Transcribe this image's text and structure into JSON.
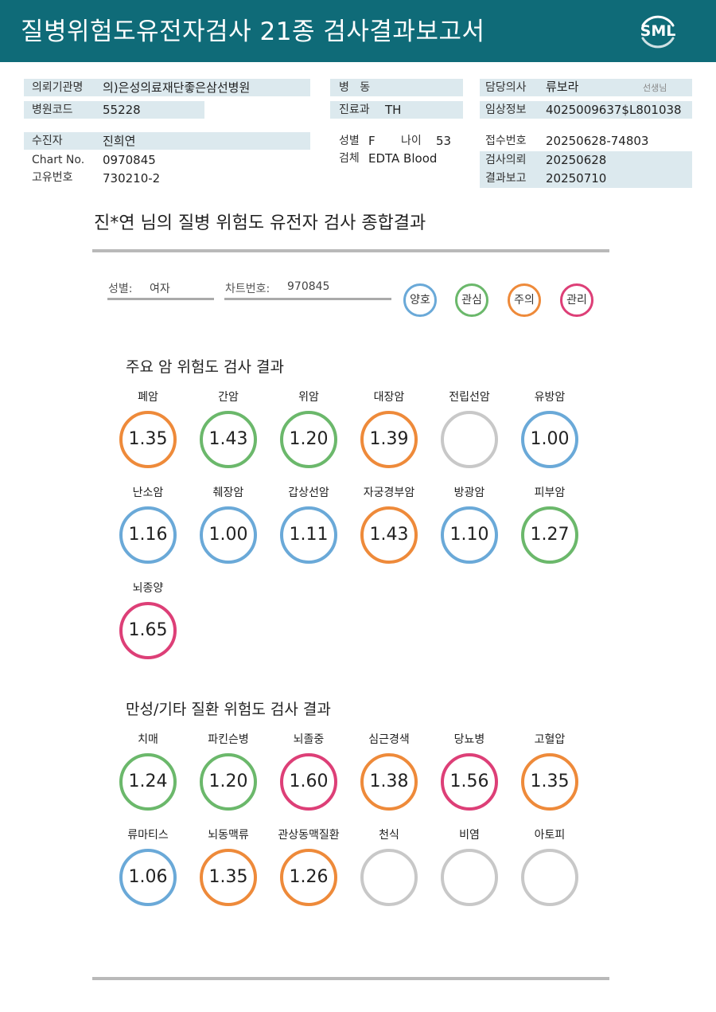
{
  "header": {
    "title": "질병위험도유전자검사 21종 검사결과보고서",
    "logo": "SML"
  },
  "info": {
    "left": [
      {
        "label": "의뢰기관명",
        "value": "의)은성의료재단좋은삼선병원"
      },
      {
        "label": "병원코드",
        "value": "55228"
      },
      {
        "label": "수진자",
        "value": "진희연"
      },
      {
        "label": "Chart No.",
        "value": "0970845"
      },
      {
        "label": "고유번호",
        "value": "730210-2"
      }
    ],
    "middle": [
      {
        "label": "병   동",
        "value": ""
      },
      {
        "label": "진료과",
        "value": "TH"
      },
      {
        "label": "성별",
        "value": "F"
      },
      {
        "label": "나이",
        "value": "53"
      },
      {
        "label": "검체",
        "value": "EDTA Blood"
      }
    ],
    "right": [
      {
        "label": "담당의사",
        "value": "류보라",
        "suffix": "선생님"
      },
      {
        "label": "임상정보",
        "value": "4025009637$L801038"
      },
      {
        "label": "접수번호",
        "value": "20250628-74803"
      },
      {
        "label": "검사의뢰",
        "value": "20250628"
      },
      {
        "label": "결과보고",
        "value": "20250710"
      }
    ]
  },
  "summary": {
    "title": "진*연 님의 질병 위험도 유전자 검사 종합결과",
    "sex_label": "성별:",
    "sex_value": "여자",
    "chart_label": "차트번호:",
    "chart_value": "970845",
    "legend": [
      {
        "label": "양호",
        "color": "#6aa9d8"
      },
      {
        "label": "관심",
        "color": "#6bb86b"
      },
      {
        "label": "주의",
        "color": "#ee8a3a"
      },
      {
        "label": "관리",
        "color": "#dd3f77"
      }
    ]
  },
  "colors": {
    "good": "#6aa9d8",
    "interest": "#6bb86b",
    "caution": "#ee8a3a",
    "manage": "#dd3f77",
    "none": "#c8c8c8"
  },
  "cancer": {
    "title": "주요 암 위험도 검사 결과",
    "items": [
      {
        "name": "폐암",
        "value": "1.35",
        "level": "caution"
      },
      {
        "name": "간암",
        "value": "1.43",
        "level": "interest"
      },
      {
        "name": "위암",
        "value": "1.20",
        "level": "interest"
      },
      {
        "name": "대장암",
        "value": "1.39",
        "level": "caution"
      },
      {
        "name": "전립선암",
        "value": "",
        "level": "none"
      },
      {
        "name": "유방암",
        "value": "1.00",
        "level": "good"
      },
      {
        "name": "난소암",
        "value": "1.16",
        "level": "good"
      },
      {
        "name": "췌장암",
        "value": "1.00",
        "level": "good"
      },
      {
        "name": "갑상선암",
        "value": "1.11",
        "level": "good"
      },
      {
        "name": "자궁경부암",
        "value": "1.43",
        "level": "caution"
      },
      {
        "name": "방광암",
        "value": "1.10",
        "level": "good"
      },
      {
        "name": "피부암",
        "value": "1.27",
        "level": "interest"
      },
      {
        "name": "뇌종양",
        "value": "1.65",
        "level": "manage"
      }
    ]
  },
  "chronic": {
    "title": "만성/기타 질환 위험도 검사 결과",
    "items": [
      {
        "name": "치매",
        "value": "1.24",
        "level": "interest"
      },
      {
        "name": "파킨슨병",
        "value": "1.20",
        "level": "interest"
      },
      {
        "name": "뇌졸중",
        "value": "1.60",
        "level": "manage"
      },
      {
        "name": "심근경색",
        "value": "1.38",
        "level": "caution"
      },
      {
        "name": "당뇨병",
        "value": "1.56",
        "level": "manage"
      },
      {
        "name": "고혈압",
        "value": "1.35",
        "level": "caution"
      },
      {
        "name": "류마티스",
        "value": "1.06",
        "level": "good"
      },
      {
        "name": "뇌동맥류",
        "value": "1.35",
        "level": "caution"
      },
      {
        "name": "관상동맥질환",
        "value": "1.26",
        "level": "caution"
      },
      {
        "name": "천식",
        "value": "",
        "level": "none"
      },
      {
        "name": "비염",
        "value": "",
        "level": "none"
      },
      {
        "name": "아토피",
        "value": "",
        "level": "none"
      }
    ]
  }
}
